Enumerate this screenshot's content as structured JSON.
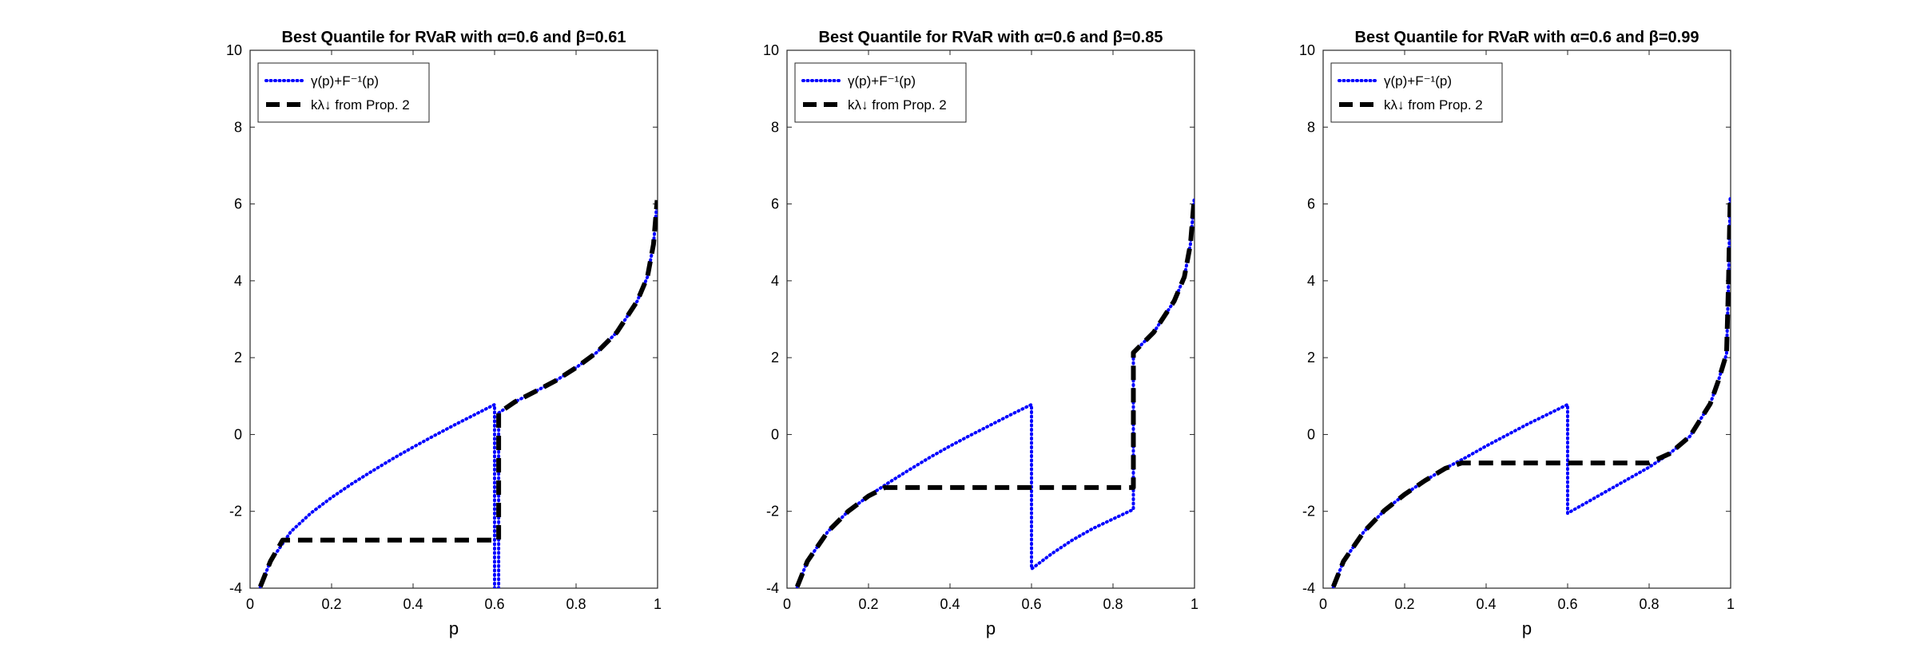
{
  "chart_data": [
    {
      "type": "line",
      "title": "Best Quantile for RVaR with α=0.6 and β=0.61",
      "xlabel": "p",
      "ylabel": "",
      "xlim": [
        0,
        1
      ],
      "ylim": [
        -4,
        10
      ],
      "xticks": [
        "0",
        "0.2",
        "0.4",
        "0.6",
        "0.8",
        "1"
      ],
      "yticks": [
        "-4",
        "-2",
        "0",
        "2",
        "4",
        "6",
        "8",
        "10"
      ],
      "legend_position": "top-left",
      "grid": false,
      "alpha": 0.6,
      "beta": 0.61,
      "series": [
        {
          "name": "γ(p)+F⁻¹(p)",
          "style": "dotted",
          "color": "#0000ff",
          "x": [
            0.025,
            0.05,
            0.1,
            0.15,
            0.2,
            0.25,
            0.3,
            0.35,
            0.4,
            0.45,
            0.5,
            0.55,
            0.6,
            0.6,
            0.61,
            0.61,
            0.65,
            0.7,
            0.75,
            0.8,
            0.85,
            0.9,
            0.95,
            0.975,
            0.99,
            0.999
          ],
          "y": [
            -3.96,
            -3.3,
            -2.53,
            -2.04,
            -1.64,
            -1.28,
            -0.95,
            -0.63,
            -0.33,
            -0.04,
            0.24,
            0.51,
            0.78,
            -4.0,
            -4.0,
            0.56,
            0.85,
            1.12,
            1.4,
            1.74,
            2.13,
            2.66,
            3.47,
            4.1,
            4.95,
            6.1
          ]
        },
        {
          "name": "kλ↓ from Prop. 2",
          "style": "dashed",
          "color": "#000000",
          "x": [
            0.025,
            0.05,
            0.08,
            0.08,
            0.6,
            0.61,
            0.61,
            0.65,
            0.7,
            0.75,
            0.8,
            0.85,
            0.9,
            0.95,
            0.975,
            0.99,
            0.999
          ],
          "y": [
            -3.96,
            -3.3,
            -2.75,
            -2.75,
            -2.75,
            -2.75,
            0.56,
            0.85,
            1.12,
            1.4,
            1.74,
            2.13,
            2.66,
            3.47,
            4.1,
            4.95,
            6.1
          ]
        }
      ]
    },
    {
      "type": "line",
      "title": "Best Quantile for RVaR with α=0.6 and β=0.85",
      "xlabel": "p",
      "ylabel": "",
      "xlim": [
        0,
        1
      ],
      "ylim": [
        -4,
        10
      ],
      "xticks": [
        "0",
        "0.2",
        "0.4",
        "0.6",
        "0.8",
        "1"
      ],
      "yticks": [
        "-4",
        "-2",
        "0",
        "2",
        "4",
        "6",
        "8",
        "10"
      ],
      "legend_position": "top-left",
      "grid": false,
      "alpha": 0.6,
      "beta": 0.85,
      "series": [
        {
          "name": "γ(p)+F⁻¹(p)",
          "style": "dotted",
          "color": "#0000ff",
          "x": [
            0.025,
            0.05,
            0.1,
            0.15,
            0.2,
            0.25,
            0.3,
            0.35,
            0.4,
            0.45,
            0.5,
            0.55,
            0.6,
            0.6,
            0.65,
            0.7,
            0.75,
            0.8,
            0.85,
            0.85,
            0.9,
            0.95,
            0.975,
            0.99,
            0.999
          ],
          "y": [
            -3.96,
            -3.3,
            -2.53,
            -2.0,
            -1.6,
            -1.25,
            -0.92,
            -0.6,
            -0.3,
            -0.02,
            0.25,
            0.52,
            0.78,
            -3.5,
            -3.1,
            -2.75,
            -2.45,
            -2.2,
            -1.95,
            2.13,
            2.66,
            3.47,
            4.1,
            4.95,
            6.1
          ]
        },
        {
          "name": "kλ↓ from Prop. 2",
          "style": "dashed",
          "color": "#000000",
          "x": [
            0.025,
            0.05,
            0.1,
            0.15,
            0.2,
            0.24,
            0.24,
            0.85,
            0.85,
            0.9,
            0.95,
            0.975,
            0.99,
            0.999
          ],
          "y": [
            -3.96,
            -3.3,
            -2.53,
            -2.0,
            -1.6,
            -1.38,
            -1.38,
            -1.38,
            2.13,
            2.66,
            3.47,
            4.1,
            4.95,
            6.1
          ]
        }
      ]
    },
    {
      "type": "line",
      "title": "Best Quantile for RVaR with α=0.6 and β=0.99",
      "xlabel": "p",
      "ylabel": "",
      "xlim": [
        0,
        1
      ],
      "ylim": [
        -4,
        10
      ],
      "xticks": [
        "0",
        "0.2",
        "0.4",
        "0.6",
        "0.8",
        "1"
      ],
      "yticks": [
        "-4",
        "-2",
        "0",
        "2",
        "4",
        "6",
        "8",
        "10"
      ],
      "legend_position": "top-left",
      "grid": false,
      "alpha": 0.6,
      "beta": 0.99,
      "series": [
        {
          "name": "γ(p)+F⁻¹(p)",
          "style": "dotted",
          "color": "#0000ff",
          "x": [
            0.025,
            0.05,
            0.1,
            0.15,
            0.2,
            0.25,
            0.3,
            0.35,
            0.4,
            0.45,
            0.5,
            0.55,
            0.6,
            0.6,
            0.65,
            0.7,
            0.75,
            0.8,
            0.85,
            0.9,
            0.95,
            0.97,
            0.99,
            0.99,
            0.995,
            0.999
          ],
          "y": [
            -3.96,
            -3.3,
            -2.53,
            -1.98,
            -1.56,
            -1.2,
            -0.88,
            -0.6,
            -0.3,
            -0.02,
            0.26,
            0.52,
            0.78,
            -2.05,
            -1.75,
            -1.45,
            -1.15,
            -0.85,
            -0.5,
            -0.05,
            0.8,
            1.4,
            2.1,
            2.1,
            4.0,
            6.2
          ]
        },
        {
          "name": "kλ↓ from Prop. 2",
          "style": "dashed",
          "color": "#000000",
          "x": [
            0.025,
            0.05,
            0.1,
            0.15,
            0.2,
            0.25,
            0.3,
            0.34,
            0.34,
            0.8,
            0.8,
            0.85,
            0.9,
            0.95,
            0.97,
            0.99,
            0.995,
            0.999
          ],
          "y": [
            -3.96,
            -3.3,
            -2.53,
            -1.98,
            -1.56,
            -1.2,
            -0.88,
            -0.74,
            -0.74,
            -0.74,
            -0.74,
            -0.5,
            -0.05,
            0.8,
            1.4,
            2.1,
            4.0,
            6.2
          ]
        }
      ]
    }
  ]
}
